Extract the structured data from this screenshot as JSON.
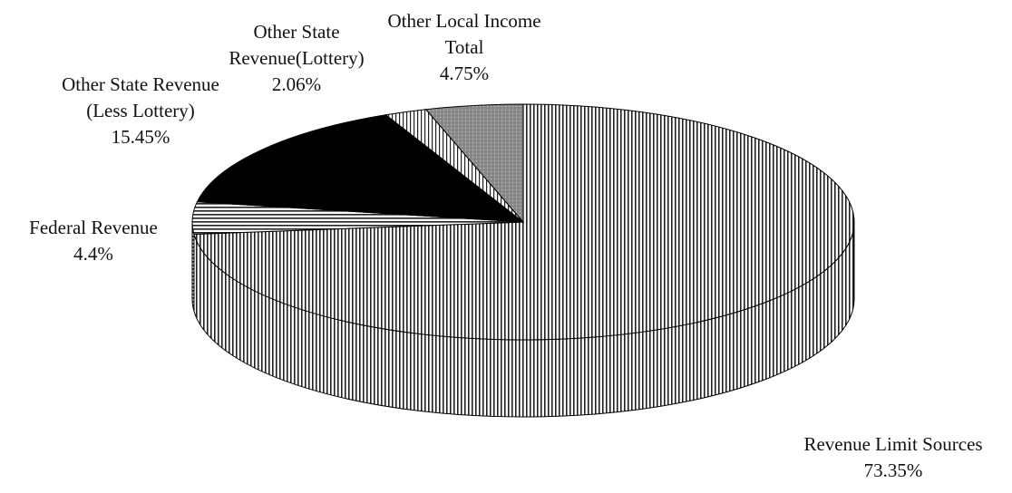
{
  "chart_data": {
    "type": "pie",
    "categories": [
      "Revenue Limit Sources",
      "Federal Revenue",
      "Other State Revenue (Less Lottery)",
      "Other State Revenue(Lottery)",
      "Other Local Income Total"
    ],
    "values": [
      73.35,
      4.4,
      15.45,
      2.06,
      4.75
    ],
    "value_labels": [
      "73.35%",
      "4.4%",
      "15.45%",
      "2.06%",
      "4.75%"
    ],
    "colors": [
      "#222222",
      "#222222",
      "#000000",
      "#222222",
      "#888888"
    ]
  }
}
